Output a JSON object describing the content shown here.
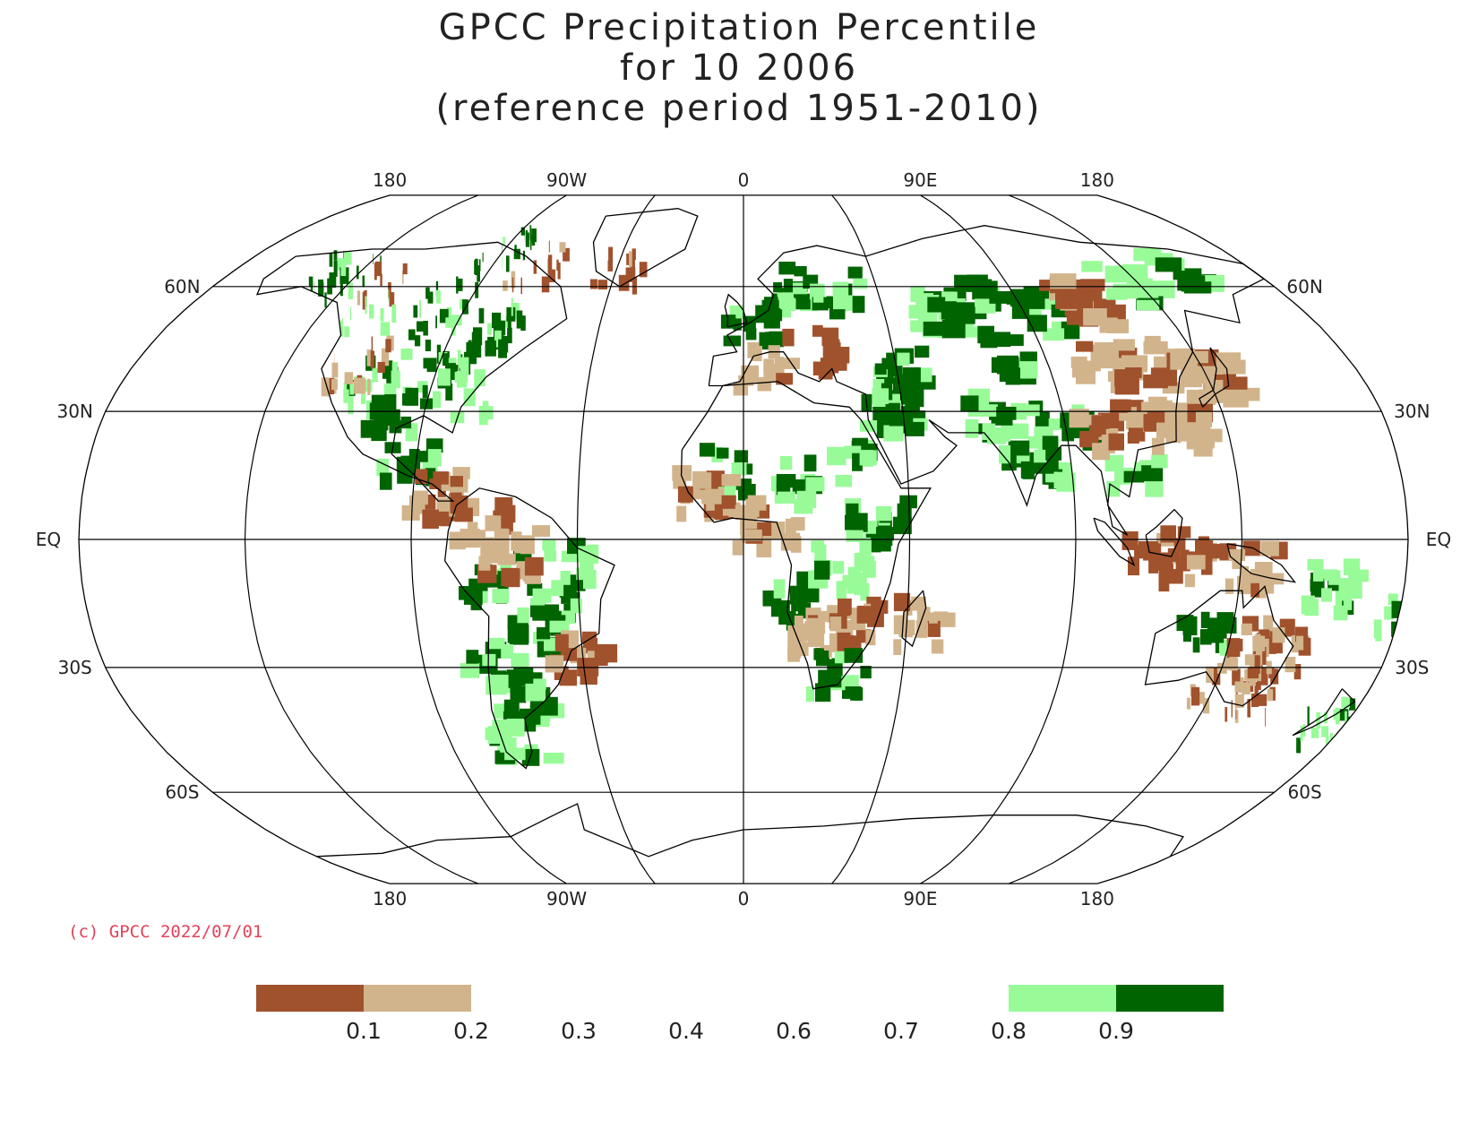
{
  "title": {
    "line1": "GPCC Precipitation Percentile",
    "line2": "for 10 2006",
    "line3": "(reference period 1951-2010)"
  },
  "projection": "Robinson",
  "graticule": {
    "lon_labels": [
      "180",
      "90W",
      "0",
      "90E",
      "180"
    ],
    "lat_labels": [
      "60N",
      "30N",
      "EQ",
      "30S",
      "60S"
    ]
  },
  "copyright": "(c) GPCC 2022/07/01",
  "legend": {
    "bins": [
      {
        "range": [
          0.0,
          0.1
        ],
        "color": "#a0522d"
      },
      {
        "range": [
          0.1,
          0.2
        ],
        "color": "#d2b48c"
      },
      {
        "range": [
          0.2,
          0.8
        ],
        "color": "#ffffff"
      },
      {
        "range": [
          0.8,
          0.9
        ],
        "color": "#98fb98"
      },
      {
        "range": [
          0.9,
          1.0
        ],
        "color": "#006400"
      }
    ],
    "labels": [
      "0.1",
      "0.2",
      "0.3",
      "0.4",
      "0.6",
      "0.7",
      "0.8",
      "0.9"
    ]
  },
  "colors": {
    "very_dry": "#a0522d",
    "dry": "#d2b48c",
    "wet": "#98fb98",
    "very_wet": "#006400",
    "coastline": "#000000",
    "grid": "#000000"
  },
  "regions": [
    {
      "lon": -150,
      "lat": 66,
      "p": 0.95
    },
    {
      "lon": -140,
      "lat": 64,
      "p": 0.95
    },
    {
      "lon": -125,
      "lat": 62,
      "p": 0.05
    },
    {
      "lon": -100,
      "lat": 62,
      "p": 0.95
    },
    {
      "lon": -75,
      "lat": 67,
      "p": 0.05
    },
    {
      "lon": -45,
      "lat": 66,
      "p": 0.05
    },
    {
      "lon": -90,
      "lat": 72,
      "p": 0.95
    },
    {
      "lon": -78,
      "lat": 52,
      "p": 0.95
    },
    {
      "lon": -100,
      "lat": 50,
      "p": 0.95
    },
    {
      "lon": -88,
      "lat": 42,
      "p": 0.95
    },
    {
      "lon": -108,
      "lat": 38,
      "p": 0.85
    },
    {
      "lon": -115,
      "lat": 43,
      "p": 0.15
    },
    {
      "lon": -100,
      "lat": 32,
      "p": 0.95
    },
    {
      "lon": -82,
      "lat": 35,
      "p": 0.85
    },
    {
      "lon": -120,
      "lat": 55,
      "p": 0.85
    },
    {
      "lon": -95,
      "lat": 20,
      "p": 0.95
    },
    {
      "lon": -85,
      "lat": 12,
      "p": 0.05
    },
    {
      "lon": -72,
      "lat": 5,
      "p": 0.05
    },
    {
      "lon": -70,
      "lat": -8,
      "p": 0.95
    },
    {
      "lon": -55,
      "lat": -12,
      "p": 0.95
    },
    {
      "lon": -50,
      "lat": -5,
      "p": 0.85
    },
    {
      "lon": -60,
      "lat": -20,
      "p": 0.95
    },
    {
      "lon": -65,
      "lat": -2,
      "p": 0.15
    },
    {
      "lon": -48,
      "lat": -25,
      "p": 0.05
    },
    {
      "lon": -65,
      "lat": -35,
      "p": 0.95
    },
    {
      "lon": -70,
      "lat": -45,
      "p": 0.85
    },
    {
      "lon": -72,
      "lat": -28,
      "p": 0.85
    },
    {
      "lon": 15,
      "lat": 62,
      "p": 0.95
    },
    {
      "lon": 30,
      "lat": 60,
      "p": 0.95
    },
    {
      "lon": 0,
      "lat": 52,
      "p": 0.95
    },
    {
      "lon": 20,
      "lat": 45,
      "p": 0.05
    },
    {
      "lon": 5,
      "lat": 42,
      "p": 0.15
    },
    {
      "lon": 45,
      "lat": 40,
      "p": 0.95
    },
    {
      "lon": 40,
      "lat": 32,
      "p": 0.95
    },
    {
      "lon": 60,
      "lat": 55,
      "p": 0.85
    },
    {
      "lon": 75,
      "lat": 60,
      "p": 0.95
    },
    {
      "lon": 95,
      "lat": 55,
      "p": 0.95
    },
    {
      "lon": 110,
      "lat": 58,
      "p": 0.05
    },
    {
      "lon": 120,
      "lat": 48,
      "p": 0.15
    },
    {
      "lon": 105,
      "lat": 42,
      "p": 0.15
    },
    {
      "lon": 80,
      "lat": 45,
      "p": 0.95
    },
    {
      "lon": 115,
      "lat": 35,
      "p": 0.05
    },
    {
      "lon": 135,
      "lat": 40,
      "p": 0.15
    },
    {
      "lon": 130,
      "lat": 62,
      "p": 0.85
    },
    {
      "lon": 150,
      "lat": 65,
      "p": 0.95
    },
    {
      "lon": 88,
      "lat": 28,
      "p": 0.95
    },
    {
      "lon": 78,
      "lat": 20,
      "p": 0.95
    },
    {
      "lon": 105,
      "lat": 18,
      "p": 0.85
    },
    {
      "lon": 70,
      "lat": 30,
      "p": 0.85
    },
    {
      "lon": 100,
      "lat": 28,
      "p": 0.05
    },
    {
      "lon": 120,
      "lat": 28,
      "p": 0.15
    },
    {
      "lon": -5,
      "lat": 18,
      "p": 0.95
    },
    {
      "lon": 15,
      "lat": 15,
      "p": 0.95
    },
    {
      "lon": 25,
      "lat": 20,
      "p": 0.85
    },
    {
      "lon": -12,
      "lat": 12,
      "p": 0.15
    },
    {
      "lon": 35,
      "lat": 5,
      "p": 0.95
    },
    {
      "lon": 10,
      "lat": -12,
      "p": 0.95
    },
    {
      "lon": 25,
      "lat": -5,
      "p": 0.85
    },
    {
      "lon": 20,
      "lat": -20,
      "p": 0.15
    },
    {
      "lon": 30,
      "lat": -18,
      "p": 0.05
    },
    {
      "lon": 25,
      "lat": -30,
      "p": 0.95
    },
    {
      "lon": 47,
      "lat": -18,
      "p": 0.15
    },
    {
      "lon": 5,
      "lat": 5,
      "p": 0.15
    },
    {
      "lon": 110,
      "lat": 0,
      "p": 0.05
    },
    {
      "lon": 120,
      "lat": -3,
      "p": 0.05
    },
    {
      "lon": 135,
      "lat": -5,
      "p": 0.15
    },
    {
      "lon": 125,
      "lat": -22,
      "p": 0.95
    },
    {
      "lon": 140,
      "lat": -22,
      "p": 0.05
    },
    {
      "lon": 145,
      "lat": -35,
      "p": 0.05
    },
    {
      "lon": 135,
      "lat": -32,
      "p": 0.15
    },
    {
      "lon": 148,
      "lat": -25,
      "p": 0.15
    },
    {
      "lon": 172,
      "lat": -42,
      "p": 0.85
    },
    {
      "lon": 160,
      "lat": -10,
      "p": 0.85
    },
    {
      "lon": 178,
      "lat": -17,
      "p": 0.85
    }
  ]
}
